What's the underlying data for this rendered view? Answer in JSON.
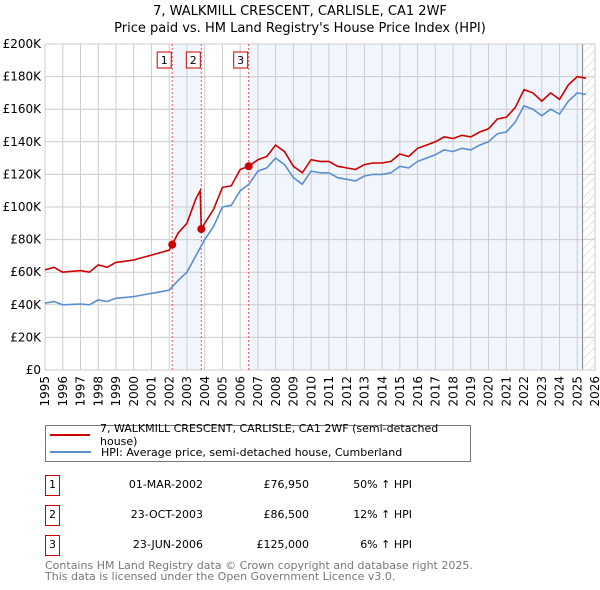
{
  "title_line1": "7, WALKMILL CRESCENT, CARLISLE, CA1 2WF",
  "title_line2": "Price paid vs. HM Land Registry's House Price Index (HPI)",
  "chart_data": {
    "type": "line",
    "title": "7, WALKMILL CRESCENT, CARLISLE, CA1 2WF — Price paid vs. HM Land Registry's House Price Index (HPI)",
    "xlim": [
      1995,
      2026
    ],
    "ylim": [
      0,
      200000
    ],
    "x_ticks": [
      1995,
      1996,
      1997,
      1998,
      1999,
      2000,
      2001,
      2002,
      2003,
      2004,
      2005,
      2006,
      2007,
      2008,
      2009,
      2010,
      2011,
      2012,
      2013,
      2014,
      2015,
      2016,
      2017,
      2018,
      2019,
      2020,
      2021,
      2022,
      2023,
      2024,
      2025,
      2026
    ],
    "y_ticks": [
      {
        "v": 0,
        "label": "£0"
      },
      {
        "v": 20000,
        "label": "£20K"
      },
      {
        "v": 40000,
        "label": "£40K"
      },
      {
        "v": 60000,
        "label": "£60K"
      },
      {
        "v": 80000,
        "label": "£80K"
      },
      {
        "v": 100000,
        "label": "£100K"
      },
      {
        "v": 120000,
        "label": "£120K"
      },
      {
        "v": 140000,
        "label": "£140K"
      },
      {
        "v": 160000,
        "label": "£160K"
      },
      {
        "v": 180000,
        "label": "£180K"
      },
      {
        "v": 200000,
        "label": "£200K"
      }
    ],
    "grid": true,
    "shaded_periods": [
      [
        2002.17,
        2003.81
      ],
      [
        2006.48,
        2026
      ]
    ],
    "hatched_from": 2025.3,
    "series": [
      {
        "name": "7, WALKMILL CRESCENT, CARLISLE, CA1 2WF (semi-detached house)",
        "color": "#cc0000",
        "points": [
          [
            1995,
            61.5
          ],
          [
            1995.5,
            63
          ],
          [
            1996,
            60
          ],
          [
            1997,
            61
          ],
          [
            1997.5,
            60
          ],
          [
            1998,
            64.5
          ],
          [
            1998.5,
            63
          ],
          [
            1999,
            66
          ],
          [
            2000,
            67.5
          ],
          [
            2000.5,
            69
          ],
          [
            2001,
            70.5
          ],
          [
            2001.5,
            72
          ],
          [
            2002,
            73.5
          ],
          [
            2002.17,
            76.95
          ],
          [
            2002.5,
            84
          ],
          [
            2003,
            90
          ],
          [
            2003.5,
            105
          ],
          [
            2003.75,
            110
          ],
          [
            2003.81,
            86.5
          ],
          [
            2004,
            90
          ],
          [
            2004.5,
            98.5
          ],
          [
            2005,
            112
          ],
          [
            2005.5,
            113
          ],
          [
            2006,
            123
          ],
          [
            2006.48,
            125
          ],
          [
            2007,
            129
          ],
          [
            2007.5,
            131
          ],
          [
            2008,
            138
          ],
          [
            2008.5,
            134
          ],
          [
            2009,
            125
          ],
          [
            2009.5,
            121
          ],
          [
            2010,
            129
          ],
          [
            2010.5,
            128
          ],
          [
            2011,
            128
          ],
          [
            2011.5,
            125
          ],
          [
            2012,
            124
          ],
          [
            2012.5,
            123
          ],
          [
            2013,
            126
          ],
          [
            2013.5,
            127
          ],
          [
            2014,
            127
          ],
          [
            2014.5,
            128
          ],
          [
            2015,
            132.5
          ],
          [
            2015.5,
            131
          ],
          [
            2016,
            136
          ],
          [
            2016.5,
            138
          ],
          [
            2017,
            140
          ],
          [
            2017.5,
            143
          ],
          [
            2018,
            142
          ],
          [
            2018.5,
            144
          ],
          [
            2019,
            143
          ],
          [
            2019.5,
            146
          ],
          [
            2020,
            148
          ],
          [
            2020.5,
            154
          ],
          [
            2021,
            155
          ],
          [
            2021.5,
            161
          ],
          [
            2022,
            172
          ],
          [
            2022.5,
            170
          ],
          [
            2023,
            165
          ],
          [
            2023.5,
            170
          ],
          [
            2024,
            166
          ],
          [
            2024.5,
            175
          ],
          [
            2025,
            180
          ],
          [
            2025.5,
            179
          ]
        ]
      },
      {
        "name": "HPI: Average price, semi-detached house, Cumberland",
        "color": "#5b8fd0",
        "points": [
          [
            1995,
            41
          ],
          [
            1995.5,
            42
          ],
          [
            1996,
            40
          ],
          [
            1997,
            40.5
          ],
          [
            1997.5,
            40
          ],
          [
            1998,
            43
          ],
          [
            1998.5,
            42
          ],
          [
            1999,
            44
          ],
          [
            2000,
            45
          ],
          [
            2000.5,
            46
          ],
          [
            2001,
            47
          ],
          [
            2001.5,
            48
          ],
          [
            2002,
            49
          ],
          [
            2002.5,
            55
          ],
          [
            2003,
            60
          ],
          [
            2003.5,
            70
          ],
          [
            2004,
            80
          ],
          [
            2004.5,
            88
          ],
          [
            2005,
            100
          ],
          [
            2005.5,
            101
          ],
          [
            2006,
            110
          ],
          [
            2006.5,
            114
          ],
          [
            2007,
            122
          ],
          [
            2007.5,
            124
          ],
          [
            2008,
            130
          ],
          [
            2008.5,
            126
          ],
          [
            2009,
            118
          ],
          [
            2009.5,
            114
          ],
          [
            2010,
            122
          ],
          [
            2010.5,
            121
          ],
          [
            2011,
            121
          ],
          [
            2011.5,
            118
          ],
          [
            2012,
            117
          ],
          [
            2012.5,
            116
          ],
          [
            2013,
            119
          ],
          [
            2013.5,
            120
          ],
          [
            2014,
            120
          ],
          [
            2014.5,
            121
          ],
          [
            2015,
            125
          ],
          [
            2015.5,
            124
          ],
          [
            2016,
            128
          ],
          [
            2016.5,
            130
          ],
          [
            2017,
            132
          ],
          [
            2017.5,
            135
          ],
          [
            2018,
            134
          ],
          [
            2018.5,
            136
          ],
          [
            2019,
            135
          ],
          [
            2019.5,
            138
          ],
          [
            2020,
            140
          ],
          [
            2020.5,
            145
          ],
          [
            2021,
            146
          ],
          [
            2021.5,
            152
          ],
          [
            2022,
            162
          ],
          [
            2022.5,
            160
          ],
          [
            2023,
            156
          ],
          [
            2023.5,
            160
          ],
          [
            2024,
            157
          ],
          [
            2024.5,
            165
          ],
          [
            2025,
            170
          ],
          [
            2025.5,
            169
          ]
        ]
      }
    ],
    "y_unit": "thousands GBP",
    "sales": [
      {
        "n": "1",
        "x": 2002.17,
        "y": 76.95
      },
      {
        "n": "2",
        "x": 2003.81,
        "y": 86.5
      },
      {
        "n": "3",
        "x": 2006.48,
        "y": 125
      }
    ]
  },
  "legend": [
    "7, WALKMILL CRESCENT, CARLISLE, CA1 2WF (semi-detached house)",
    "HPI: Average price, semi-detached house, Cumberland"
  ],
  "colors": {
    "property": "#cc0000",
    "hpi": "#5b8fd0"
  },
  "table": [
    {
      "n": "1",
      "date": "01-MAR-2002",
      "price": "£76,950",
      "hpi": "50% ↑ HPI"
    },
    {
      "n": "2",
      "date": "23-OCT-2003",
      "price": "£86,500",
      "hpi": "12% ↑ HPI"
    },
    {
      "n": "3",
      "date": "23-JUN-2006",
      "price": "£125,000",
      "hpi": "6% ↑ HPI"
    }
  ],
  "footer_line1": "Contains HM Land Registry data © Crown copyright and database right 2025.",
  "footer_line2": "This data is licensed under the Open Government Licence v3.0."
}
